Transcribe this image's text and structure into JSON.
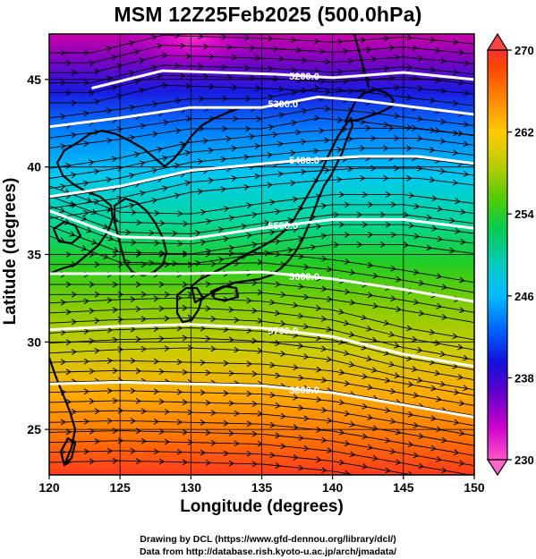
{
  "chart_data": {
    "type": "heatmap",
    "title": "MSM 12Z25Feb2025 (500.0hPa)",
    "xlabel": "Longitude (degrees)",
    "ylabel": "Latitude  (degrees)",
    "xlim": [
      120,
      150
    ],
    "ylim": [
      22.4,
      47.6
    ],
    "x_ticks": [
      "120",
      "125",
      "130",
      "135",
      "140",
      "145",
      "150"
    ],
    "y_ticks": [
      "25",
      "30",
      "35",
      "40",
      "45"
    ],
    "colorbar": {
      "range": [
        230,
        270
      ],
      "tick_labels": [
        "230",
        "238",
        "246",
        "254",
        "262",
        "270"
      ],
      "colors": [
        "#ff66cc",
        "#cc00cc",
        "#6600cc",
        "#0000cc",
        "#0055ff",
        "#00aaff",
        "#00cccc",
        "#00cc66",
        "#33cc00",
        "#99cc00",
        "#cccc00",
        "#ffcc00",
        "#ff9900",
        "#ff6600",
        "#ff3300",
        "#ff3333"
      ]
    },
    "contours": [
      {
        "label": "5200.0",
        "points": [
          [
            123,
            44.5
          ],
          [
            128,
            45.5
          ],
          [
            132,
            45.4
          ],
          [
            136,
            45.3
          ],
          [
            140,
            45.1
          ],
          [
            145,
            45.4
          ],
          [
            150,
            45.0
          ]
        ]
      },
      {
        "label": "5300.0",
        "points": [
          [
            120,
            42.3
          ],
          [
            125,
            42.8
          ],
          [
            130,
            43.4
          ],
          [
            135,
            43.4
          ],
          [
            139,
            44.0
          ],
          [
            142,
            43.8
          ],
          [
            146,
            43.4
          ],
          [
            150,
            43.0
          ]
        ]
      },
      {
        "label": "5400.0",
        "points": [
          [
            120,
            38.3
          ],
          [
            125,
            38.9
          ],
          [
            130,
            39.8
          ],
          [
            134,
            40.1
          ],
          [
            138,
            40.4
          ],
          [
            142,
            40.6
          ],
          [
            146,
            40.6
          ],
          [
            150,
            40.2
          ]
        ]
      },
      {
        "label": "5500.0",
        "points": [
          [
            120,
            37.5
          ],
          [
            125,
            36.0
          ],
          [
            130,
            35.9
          ],
          [
            135,
            36.5
          ],
          [
            140,
            37.0
          ],
          [
            145,
            37.0
          ],
          [
            150,
            36.5
          ]
        ]
      },
      {
        "label": "5600.0",
        "points": [
          [
            120,
            33.9
          ],
          [
            125,
            33.9
          ],
          [
            130,
            33.9
          ],
          [
            135,
            34.0
          ],
          [
            140,
            33.6
          ],
          [
            145,
            33.0
          ],
          [
            150,
            32.3
          ]
        ]
      },
      {
        "label": "5700.0",
        "points": [
          [
            120,
            30.7
          ],
          [
            125,
            30.9
          ],
          [
            130,
            31.0
          ],
          [
            135,
            30.8
          ],
          [
            140,
            30.3
          ],
          [
            145,
            29.3
          ],
          [
            150,
            28.6
          ]
        ]
      },
      {
        "label": "5800.0",
        "points": [
          [
            120,
            27.6
          ],
          [
            125,
            27.7
          ],
          [
            130,
            27.6
          ],
          [
            135,
            27.5
          ],
          [
            140,
            27.1
          ],
          [
            145,
            26.4
          ],
          [
            150,
            25.7
          ]
        ]
      }
    ],
    "credits": [
      "Drawing by DCL (https://www.gfd-dennou.org/library/dcl/)",
      "Data from http://database.rish.kyoto-u.ac.jp/arch/jmadata/"
    ]
  }
}
